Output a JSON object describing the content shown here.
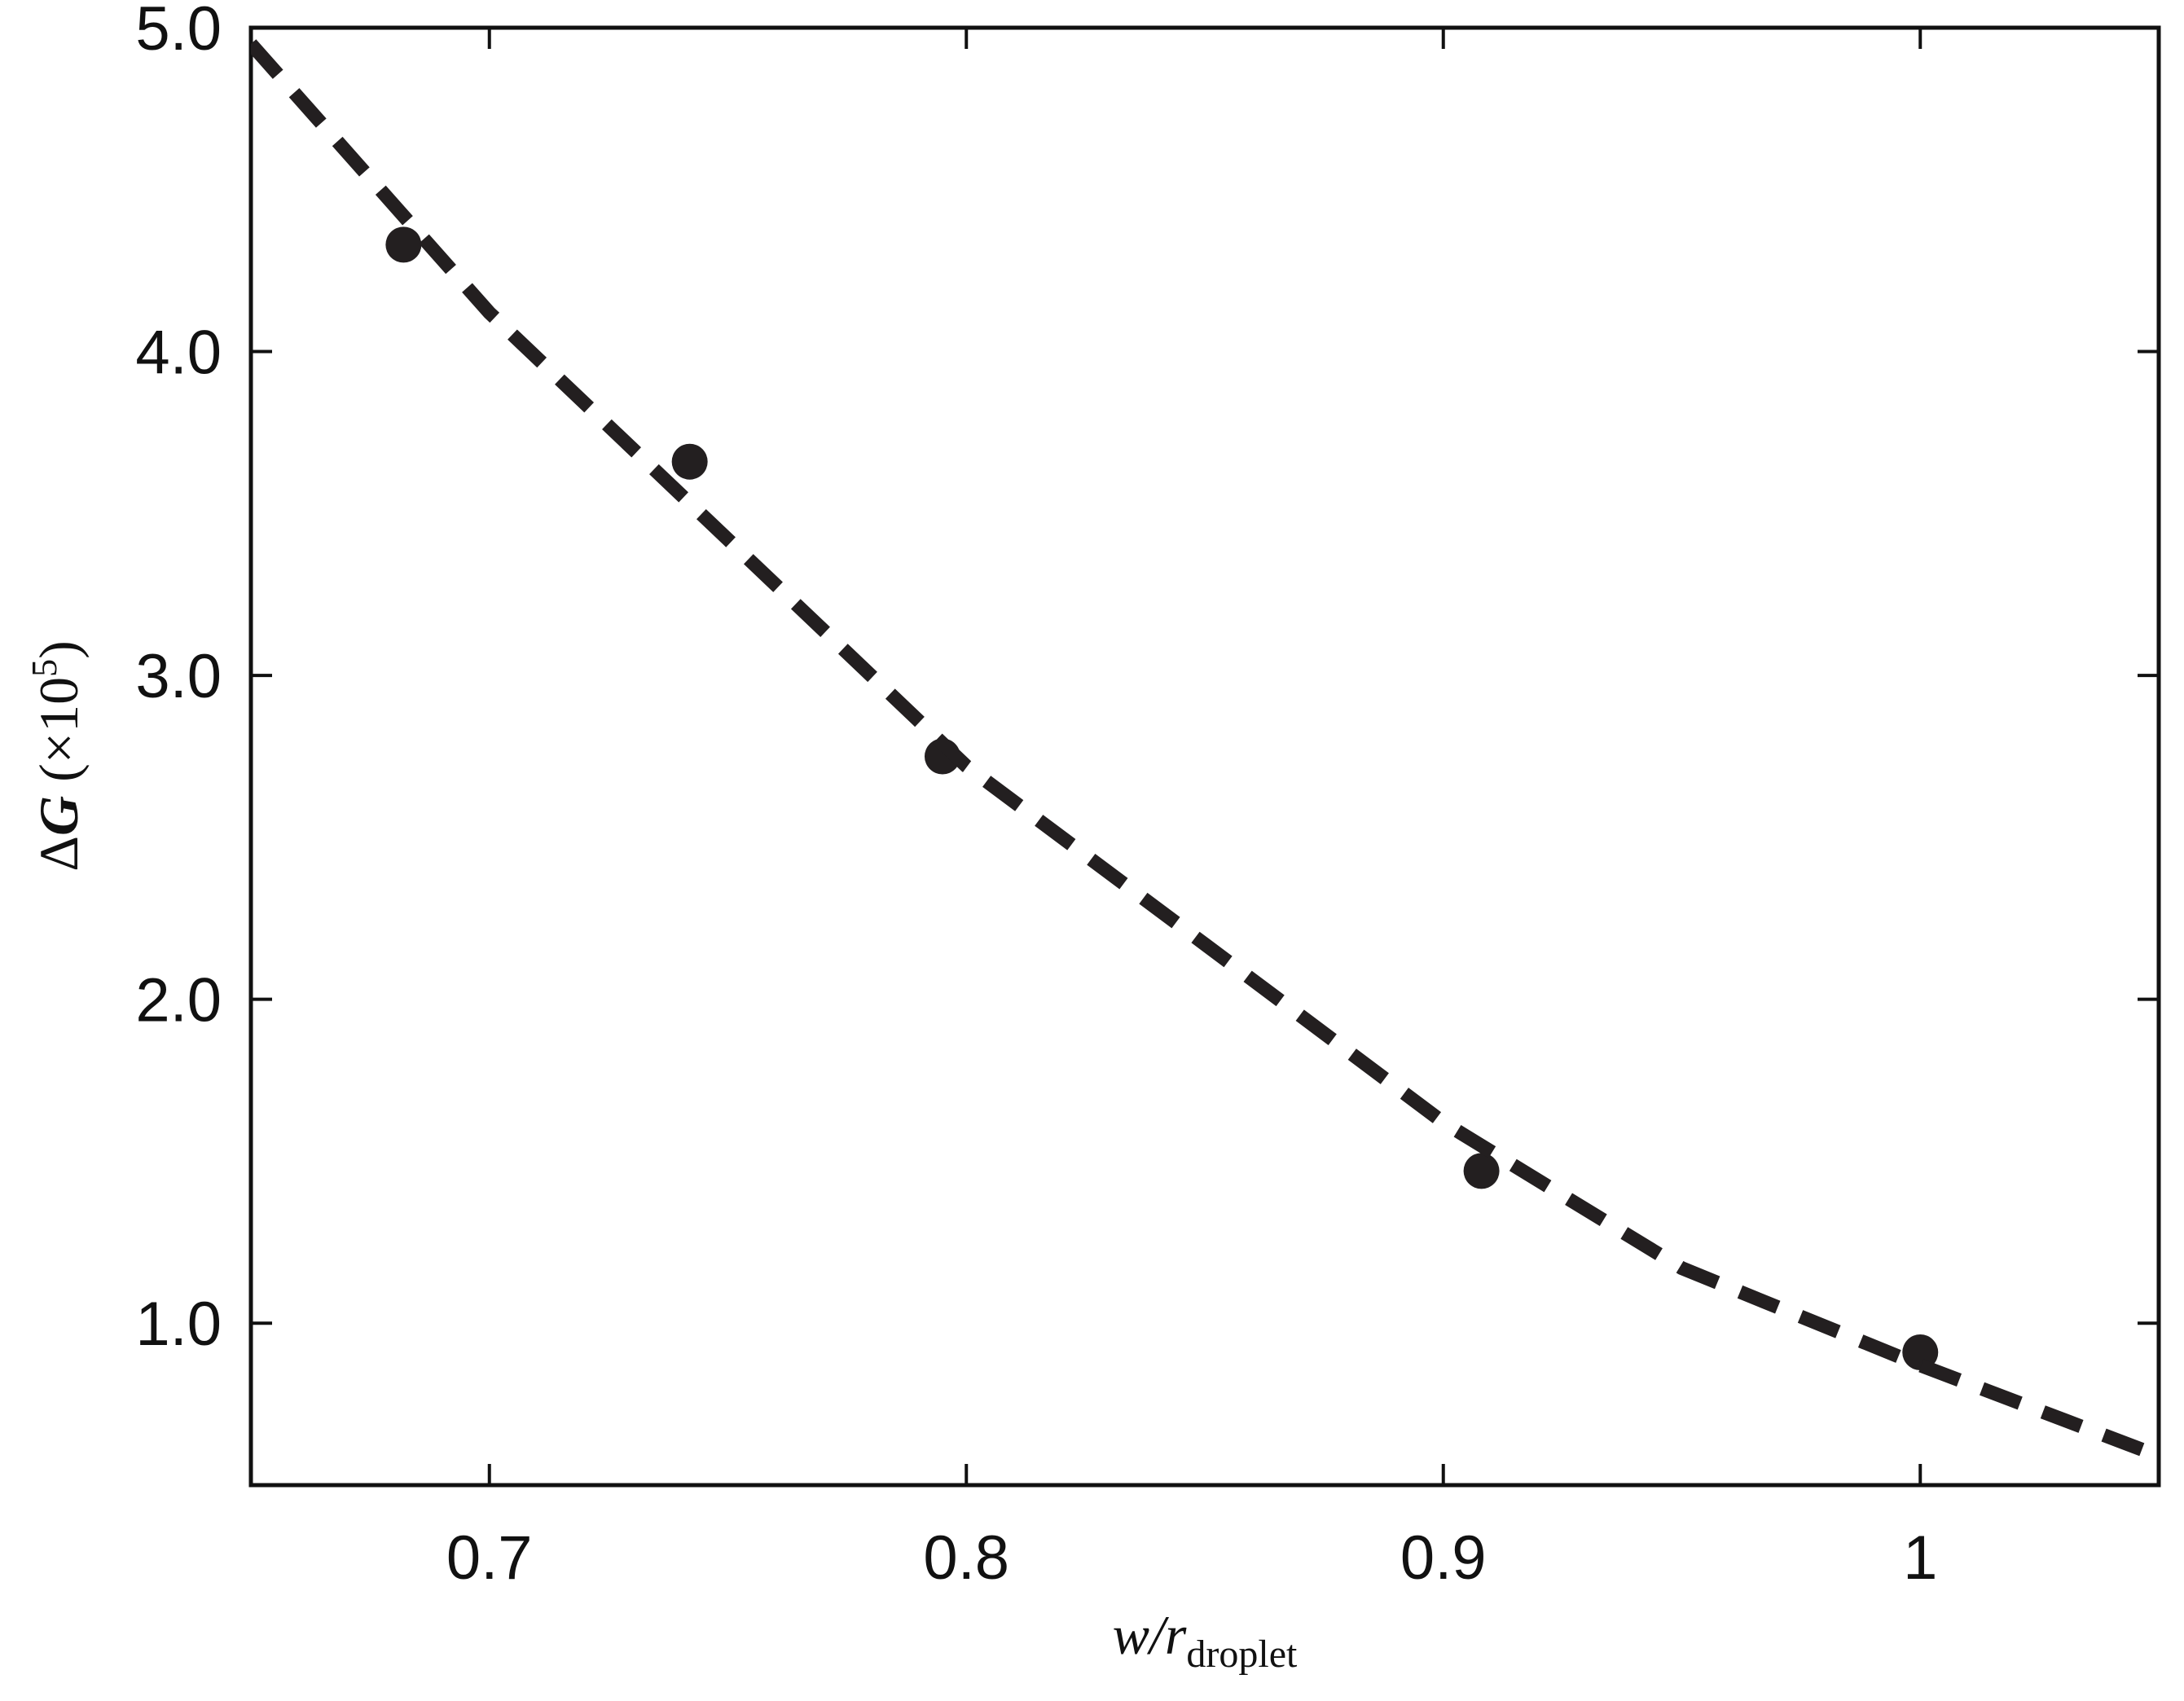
{
  "chart_data": {
    "type": "scatter",
    "x_label": [
      "w/r",
      "droplet"
    ],
    "y_label": [
      "Δ",
      "G",
      " (×10",
      "5",
      ")"
    ],
    "xlim": [
      0.65,
      1.05
    ],
    "ylim": [
      0.5,
      5.0
    ],
    "xticks": [
      0.7,
      0.8,
      0.9,
      1
    ],
    "yticks": [
      {
        "value": 1.0,
        "label": "1.0"
      },
      {
        "value": 2.0,
        "label": "2.0"
      },
      {
        "value": 3.0,
        "label": "3.0"
      },
      {
        "value": 4.0,
        "label": "4.0"
      },
      {
        "value": 5.0,
        "label": "5.0"
      }
    ],
    "series": [
      {
        "type": "scatter",
        "color": "#231f20",
        "x": [
          0.682,
          0.742,
          0.795,
          0.908,
          1.0
        ],
        "values": [
          4.33,
          3.66,
          2.75,
          1.47,
          0.91
        ]
      },
      {
        "type": "line",
        "style": "dashed",
        "color": "#231f20",
        "x": [
          0.65,
          0.7,
          0.75,
          0.8,
          0.85,
          0.9,
          0.95,
          1.0,
          1.05
        ],
        "values": [
          4.95,
          4.12,
          3.42,
          2.72,
          2.17,
          1.62,
          1.17,
          0.87,
          0.59
        ]
      }
    ]
  }
}
